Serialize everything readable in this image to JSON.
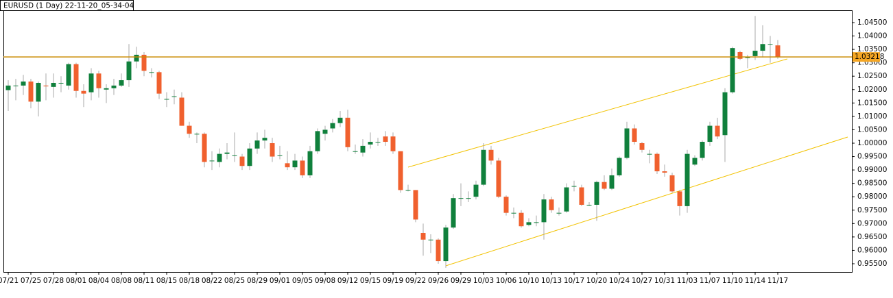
{
  "chart_data": {
    "type": "candlestick",
    "title": "EURUSD (1 Day) 22-11-20_05-34-04",
    "up_color": "#10803c",
    "down_color": "#f0602e",
    "wick_color": "#a8a8a8",
    "categories": [
      "07/21",
      null,
      null,
      "07/25",
      null,
      null,
      "07/28",
      null,
      null,
      "08/01",
      null,
      null,
      "08/04",
      null,
      null,
      "08/08",
      null,
      null,
      "08/11",
      null,
      null,
      "08/15",
      null,
      null,
      "08/18",
      null,
      null,
      "08/22",
      null,
      null,
      "08/25",
      null,
      null,
      "08/29",
      null,
      null,
      "09/01",
      null,
      null,
      "09/05",
      null,
      null,
      "09/08",
      null,
      null,
      "09/12",
      null,
      null,
      "09/15",
      null,
      null,
      "09/19",
      null,
      null,
      "09/22",
      null,
      null,
      "09/26",
      null,
      null,
      "09/29",
      null,
      null,
      "10/03",
      null,
      null,
      "10/06",
      null,
      null,
      "10/10",
      null,
      null,
      "10/13",
      null,
      null,
      "10/17",
      null,
      null,
      "10/20",
      null,
      null,
      "10/24",
      null,
      null,
      "10/27",
      null,
      null,
      "10/31",
      null,
      null,
      "11/03",
      null,
      null,
      "11/07",
      null,
      null,
      "11/10",
      null,
      null,
      "11/14",
      null,
      null,
      "11/17"
    ],
    "open": [
      1.0198,
      1.0215,
      1.0215,
      1.023,
      1.0155,
      1.0215,
      1.021,
      1.0225,
      1.0215,
      1.0295,
      1.0195,
      1.019,
      1.026,
      1.02,
      1.0205,
      1.0215,
      1.0235,
      1.0305,
      1.033,
      1.0265,
      1.0265,
      1.0165,
      1.0175,
      1.017,
      1.0065,
      1.0035,
      1.0035,
      0.9935,
      0.993,
      0.996,
      0.9955,
      0.995,
      0.9915,
      0.998,
      1.001,
      1.0,
      0.9955,
      0.9925,
      0.991,
      0.9935,
      0.988,
      0.997,
      1.0035,
      1.0055,
      1.0075,
      1.0095,
      0.997,
      0.9965,
      0.9995,
      1.0005,
      1.0025,
      1.0025,
      0.997,
      0.9825,
      0.9825,
      0.9665,
      0.964,
      0.964,
      0.956,
      0.9685,
      0.9795,
      0.9795,
      0.98,
      0.9845,
      0.9975,
      0.9935,
      0.98,
      0.974,
      0.974,
      0.9695,
      0.9705,
      0.9705,
      0.979,
      0.974,
      0.9745,
      0.984,
      0.9835,
      0.977,
      0.977,
      0.9855,
      0.983,
      0.988,
      0.9945,
      1.0055,
      1.0,
      0.996,
      0.996,
      0.9895,
      0.988,
      0.982,
      0.9765,
      0.992,
      0.9945,
      1.0005,
      1.0065,
      1.003,
      1.019,
      1.034,
      1.032,
      1.0325,
      1.0345,
      1.037,
      1.0365
    ],
    "high": [
      1.0235,
      1.024,
      1.0255,
      1.024,
      1.023,
      1.026,
      1.026,
      1.025,
      1.03,
      1.03,
      1.022,
      1.028,
      1.027,
      1.022,
      1.024,
      1.026,
      1.037,
      1.036,
      1.034,
      1.028,
      1.027,
      1.019,
      1.02,
      1.019,
      1.008,
      1.004,
      1.004,
      0.997,
      0.998,
      1.0,
      1.004,
      0.996,
      1.0,
      1.004,
      1.005,
      1.002,
      0.999,
      0.997,
      0.996,
      0.995,
      0.999,
      1.0055,
      1.0065,
      1.009,
      1.012,
      1.0125,
      0.9995,
      1.0015,
      1.004,
      1.002,
      1.0045,
      1.004,
      0.997,
      0.9845,
      0.9825,
      0.97,
      0.966,
      0.9645,
      0.9695,
      0.981,
      0.985,
      0.982,
      0.986,
      1.0,
      0.999,
      0.9945,
      0.9805,
      0.976,
      0.975,
      0.972,
      0.973,
      0.981,
      0.98,
      0.976,
      0.985,
      0.986,
      0.9845,
      0.978,
      0.986,
      0.988,
      0.9905,
      0.995,
      1.008,
      1.007,
      1.0005,
      0.9975,
      0.9965,
      0.992,
      0.989,
      0.9825,
      0.9975,
      0.9955,
      1.001,
      1.008,
      1.0095,
      1.0205,
      1.036,
      1.0345,
      1.033,
      1.0475,
      1.044,
      1.04,
      1.0385
    ],
    "low": [
      1.012,
      1.016,
      1.018,
      1.013,
      1.01,
      1.016,
      1.017,
      1.019,
      1.02,
      1.017,
      1.0135,
      1.016,
      1.017,
      1.015,
      1.018,
      1.021,
      1.021,
      1.028,
      1.025,
      1.0245,
      1.0165,
      1.0135,
      1.0145,
      1.0065,
      1.002,
      1.0,
      0.991,
      0.99,
      0.991,
      0.994,
      0.993,
      0.99,
      0.99,
      0.996,
      0.998,
      0.993,
      0.994,
      0.99,
      0.99,
      0.987,
      0.987,
      0.996,
      1.001,
      1.004,
      1.006,
      0.997,
      0.996,
      0.995,
      0.998,
      0.999,
      0.999,
      0.996,
      0.9815,
      0.982,
      0.9705,
      0.958,
      0.959,
      0.955,
      0.9535,
      0.968,
      0.9765,
      0.978,
      0.979,
      0.984,
      0.992,
      0.9795,
      0.973,
      0.972,
      0.9685,
      0.969,
      0.969,
      0.964,
      0.974,
      0.973,
      0.974,
      0.982,
      0.9765,
      0.9765,
      0.971,
      0.9825,
      0.9825,
      0.9875,
      0.994,
      0.9995,
      0.9965,
      0.9925,
      0.9885,
      0.9875,
      0.9815,
      0.973,
      0.974,
      0.9915,
      0.9935,
      0.999,
      1.0015,
      0.993,
      1.0185,
      1.031,
      1.028,
      1.031,
      1.032,
      1.03,
      1.0315
    ],
    "close": [
      1.0215,
      1.0215,
      1.023,
      1.0155,
      1.0225,
      1.0212,
      1.0225,
      1.0225,
      1.0295,
      1.0195,
      1.0185,
      1.026,
      1.0205,
      1.0205,
      1.0215,
      1.0235,
      1.0305,
      1.033,
      1.027,
      1.0265,
      1.0185,
      1.0165,
      1.0175,
      1.0065,
      1.0035,
      1.0035,
      0.993,
      0.9935,
      0.996,
      0.9965,
      0.9955,
      0.9915,
      0.998,
      1.001,
      1.002,
      0.995,
      0.9955,
      0.991,
      0.9935,
      0.988,
      0.997,
      1.0045,
      1.005,
      1.0075,
      1.0095,
      0.9985,
      0.997,
      0.999,
      1.0005,
      1.0005,
      1.0005,
      0.997,
      0.9825,
      0.9825,
      0.9715,
      0.964,
      0.964,
      0.956,
      0.9685,
      0.9795,
      0.9795,
      0.9795,
      0.9845,
      0.9975,
      0.9935,
      0.98,
      0.974,
      0.974,
      0.969,
      0.9705,
      0.9705,
      0.979,
      0.975,
      0.974,
      0.9835,
      0.984,
      0.977,
      0.977,
      0.9855,
      0.983,
      0.988,
      0.9945,
      1.0055,
      1.0005,
      0.9975,
      0.996,
      0.9895,
      0.989,
      0.982,
      0.9765,
      0.996,
      0.9945,
      1.0005,
      1.0065,
      1.0025,
      1.019,
      1.0355,
      1.0315,
      1.032,
      1.0345,
      1.037,
      1.037,
      1.0322
    ],
    "price_line": {
      "value": 1.03218,
      "label": "1.03218",
      "color": "#c98a00",
      "box_color": "#f5a623"
    },
    "ylim": [
      0.95244,
      1.0496
    ],
    "yticks": [
      {
        "value": 0.955,
        "label": "0.95500"
      },
      {
        "value": 0.96,
        "label": "0.96000"
      },
      {
        "value": 0.965,
        "label": "0.96500"
      },
      {
        "value": 0.97,
        "label": "0.97000"
      },
      {
        "value": 0.975,
        "label": "0.97500"
      },
      {
        "value": 0.98,
        "label": "0.98000"
      },
      {
        "value": 0.985,
        "label": "0.98500"
      },
      {
        "value": 0.99,
        "label": "0.99000"
      },
      {
        "value": 0.995,
        "label": "0.99500"
      },
      {
        "value": 1.0,
        "label": "1.00000"
      },
      {
        "value": 1.005,
        "label": "1.00500"
      },
      {
        "value": 1.01,
        "label": "1.01000"
      },
      {
        "value": 1.015,
        "label": "1.01500"
      },
      {
        "value": 1.02,
        "label": "1.02000"
      },
      {
        "value": 1.025,
        "label": "1.02500"
      },
      {
        "value": 1.03,
        "label": "1.03000"
      },
      {
        "value": 1.035,
        "label": "1.03500"
      },
      {
        "value": 1.04,
        "label": "1.04000"
      },
      {
        "value": 1.045,
        "label": "1.04500"
      }
    ],
    "grid": false
  }
}
